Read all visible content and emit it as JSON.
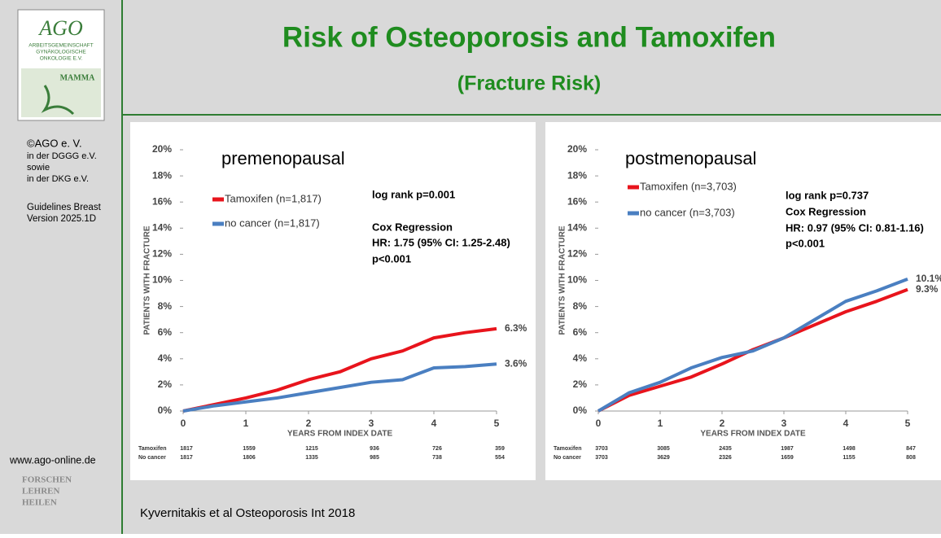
{
  "header": {
    "title": "Risk of Osteoporosis and Tamoxifen",
    "subtitle": "(Fracture Risk)"
  },
  "sidebar": {
    "logo": {
      "name": "AGO",
      "org": [
        "ARBEITSGEMEINSCHAFT",
        "GYNÄKOLOGISCHE",
        "ONKOLOGIE E.V."
      ],
      "badge": "MAMMA"
    },
    "lines": [
      "©AGO e. V.",
      "in der DGGG e.V.",
      "sowie",
      "in der DKG e.V."
    ],
    "guideline": [
      "Guidelines Breast",
      "Version 2025.1D"
    ],
    "url": "www.ago-online.de",
    "motto": [
      "FORSCHEN",
      "LEHREN",
      "HEILEN"
    ]
  },
  "footer": "Kyvernitakis et al Osteoporosis Int 2018",
  "chart_data": [
    {
      "type": "line",
      "title": "premenopausal",
      "xlabel": "YEARS FROM INDEX DATE",
      "ylabel": "PATIENTS WITH FRACTURE",
      "xlim": [
        0,
        5
      ],
      "xticks": [
        0,
        1,
        2,
        3,
        4,
        5
      ],
      "ylim": [
        0,
        20
      ],
      "yticks": [
        {
          "value": 0,
          "label": "0%"
        },
        {
          "value": 2,
          "label": "2%"
        },
        {
          "value": 4,
          "label": "4%"
        },
        {
          "value": 6,
          "label": "6%"
        },
        {
          "value": 8,
          "label": "8%"
        },
        {
          "value": 10,
          "label": "10%"
        },
        {
          "value": 12,
          "label": "12%"
        },
        {
          "value": 14,
          "label": "14%"
        },
        {
          "value": 16,
          "label": "16%"
        },
        {
          "value": 18,
          "label": "18%"
        },
        {
          "value": 20,
          "label": "20%"
        }
      ],
      "annotations": [
        "log rank p=0.001",
        "Cox Regression",
        "HR: 1.75 (95% CI: 1.25-2.48)",
        "p<0.001"
      ],
      "series": [
        {
          "name": "Tamoxifen (n=1,817)",
          "color": "#e8141c",
          "end_label": "6.3%",
          "x": [
            0,
            0.5,
            1,
            1.5,
            2,
            2.5,
            3,
            3.5,
            4,
            4.5,
            5
          ],
          "values": [
            0,
            0.5,
            1,
            1.6,
            2.4,
            3.0,
            4.0,
            4.6,
            5.6,
            6.0,
            6.3
          ]
        },
        {
          "name": "no cancer (n=1,817)",
          "color": "#4a7fc1",
          "end_label": "3.6%",
          "x": [
            0,
            0.5,
            1,
            1.5,
            2,
            2.5,
            3,
            3.5,
            4,
            4.5,
            5
          ],
          "values": [
            0,
            0.4,
            0.7,
            1.0,
            1.4,
            1.8,
            2.2,
            2.4,
            3.3,
            3.4,
            3.6
          ]
        }
      ],
      "risk_table": [
        {
          "name": "Tamoxifen",
          "values": [
            1817,
            1559,
            1215,
            936,
            726,
            359
          ]
        },
        {
          "name": "No cancer",
          "values": [
            1817,
            1806,
            1335,
            985,
            738,
            554
          ]
        }
      ]
    },
    {
      "type": "line",
      "title": "postmenopausal",
      "xlabel": "YEARS FROM INDEX DATE",
      "ylabel": "PATIENTS WITH FRACTURE",
      "xlim": [
        0,
        5
      ],
      "xticks": [
        0,
        1,
        2,
        3,
        4,
        5
      ],
      "ylim": [
        0,
        20
      ],
      "yticks": [
        {
          "value": 0,
          "label": "0%"
        },
        {
          "value": 2,
          "label": "2%"
        },
        {
          "value": 4,
          "label": "4%"
        },
        {
          "value": 6,
          "label": "6%"
        },
        {
          "value": 8,
          "label": "8%"
        },
        {
          "value": 10,
          "label": "10%"
        },
        {
          "value": 12,
          "label": "12%"
        },
        {
          "value": 14,
          "label": "14%"
        },
        {
          "value": 16,
          "label": "16%"
        },
        {
          "value": 18,
          "label": "18%"
        },
        {
          "value": 20,
          "label": "20%"
        }
      ],
      "annotations": [
        "log rank p=0.737",
        "Cox Regression",
        "HR: 0.97 (95% CI: 0.81-1.16)",
        "p<0.001"
      ],
      "series": [
        {
          "name": "Tamoxifen (n=3,703)",
          "color": "#e8141c",
          "end_label": "9.3%",
          "x": [
            0,
            0.5,
            1,
            1.5,
            2,
            2.5,
            3,
            3.5,
            4,
            4.5,
            5
          ],
          "values": [
            0,
            1.2,
            1.9,
            2.6,
            3.6,
            4.7,
            5.6,
            6.6,
            7.6,
            8.4,
            9.3
          ]
        },
        {
          "name": "no cancer (n=3,703)",
          "color": "#4a7fc1",
          "end_label": "10.1%",
          "x": [
            0,
            0.5,
            1,
            1.5,
            2,
            2.5,
            3,
            3.5,
            4,
            4.5,
            5
          ],
          "values": [
            0,
            1.4,
            2.2,
            3.3,
            4.1,
            4.6,
            5.6,
            7.0,
            8.4,
            9.2,
            10.1
          ]
        }
      ],
      "risk_table": [
        {
          "name": "Tamoxifen",
          "values": [
            3703,
            3085,
            2435,
            1987,
            1498,
            847
          ]
        },
        {
          "name": "No cancer",
          "values": [
            3703,
            3629,
            2326,
            1659,
            1155,
            808
          ]
        }
      ]
    }
  ]
}
